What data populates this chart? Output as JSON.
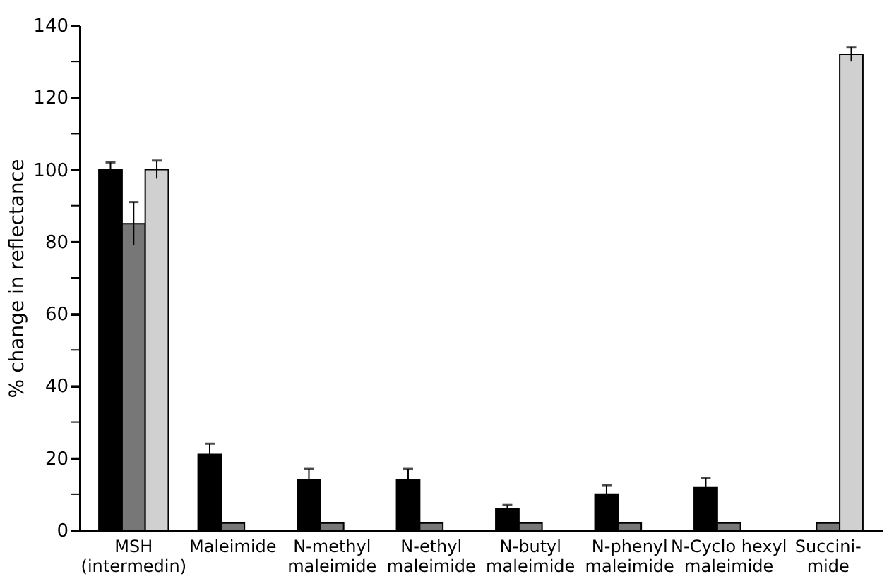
{
  "chart_data": {
    "type": "bar",
    "ylabel": "% change in reflectance",
    "categories": [
      "MSH\n(intermedin)",
      "Maleimide",
      "N-methyl\nmaleimide",
      "N-ethyl\nmaleimide",
      "N-butyl\nmaleimide",
      "N-phenyl\nmaleimide",
      "N-Cyclo hexyl\nmaleimide",
      "Succini-\nmide"
    ],
    "series": [
      {
        "color": "#000000",
        "values": [
          100,
          21,
          14,
          14,
          6,
          10,
          12,
          null
        ],
        "errors": [
          2,
          3,
          3,
          3,
          1,
          2.5,
          2.5,
          null
        ]
      },
      {
        "color": "#777777",
        "values": [
          85,
          2,
          2,
          2,
          2,
          2,
          2,
          2
        ],
        "errors": [
          6,
          null,
          null,
          null,
          null,
          null,
          null,
          null
        ]
      },
      {
        "color": "#d0d0d0",
        "values": [
          100,
          null,
          null,
          null,
          null,
          null,
          null,
          132
        ],
        "errors": [
          2.5,
          null,
          null,
          null,
          null,
          null,
          null,
          2
        ]
      }
    ],
    "ylim": [
      0,
      140
    ],
    "yticks": [
      0,
      {
        "value": 10,
        "label": null
      },
      20,
      {
        "value": 30,
        "label": null
      },
      40,
      {
        "value": 50,
        "label": null
      },
      60,
      {
        "value": 70,
        "label": null
      },
      80,
      {
        "value": 90,
        "label": null
      },
      100,
      {
        "value": 110,
        "label": null
      },
      120,
      {
        "value": 130,
        "label": null
      },
      140
    ],
    "grid": false
  }
}
